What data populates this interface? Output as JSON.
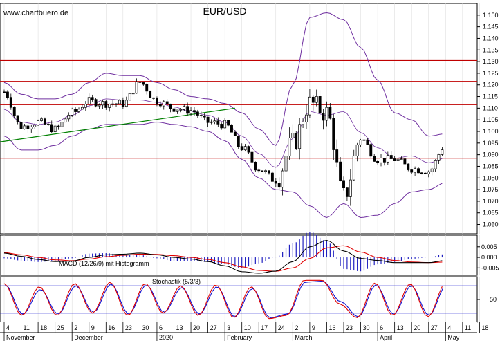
{
  "watermark": "www.chartbuero.de",
  "colors": {
    "bull": "#ffffff",
    "bear": "#000000",
    "band": "#7030a0",
    "hline": "#c00000",
    "trend": "#008000",
    "macd": "#000000",
    "signal": "#e00000",
    "hist": "#2020c0",
    "stochK": "#e00000",
    "stochD": "#1010d0",
    "stochLevel": "#1010d0"
  },
  "x_axis": {
    "day_labels": [
      "4",
      "11",
      "18",
      "25",
      "2",
      "9",
      "16",
      "23",
      "30",
      "6",
      "13",
      "20",
      "27",
      "3",
      "10",
      "17",
      "24",
      "2",
      "9",
      "16",
      "23",
      "30",
      "6",
      "13",
      "20",
      "27",
      "4",
      "11",
      "18"
    ],
    "month_labels": [
      {
        "label": "November",
        "week": 0
      },
      {
        "label": "December",
        "week": 4
      },
      {
        "label": "2020",
        "week": 9
      },
      {
        "label": "February",
        "week": 13
      },
      {
        "label": "March",
        "week": 17
      },
      {
        "label": "April",
        "week": 22
      },
      {
        "label": "May",
        "week": 26
      }
    ]
  },
  "chart_data": [
    {
      "type": "candlestick",
      "title": "EUR/USD",
      "ylim": [
        1.056,
        1.155
      ],
      "yticks": [
        "1.060",
        "1.065",
        "1.070",
        "1.075",
        "1.080",
        "1.085",
        "1.090",
        "1.095",
        "1.100",
        "1.105",
        "1.110",
        "1.115",
        "1.120",
        "1.125",
        "1.130",
        "1.135",
        "1.140",
        "1.145",
        "1.150"
      ],
      "horizontal_lines": [
        1.1305,
        1.1215,
        1.1115,
        1.0885
      ],
      "trendline": {
        "from": [
          0,
          1.0955
        ],
        "to": [
          68,
          1.11
        ]
      },
      "weekly_close": [
        1.117,
        1.102,
        1.104,
        1.101,
        1.108,
        1.113,
        1.112,
        1.112,
        1.121,
        1.113,
        1.11,
        1.109,
        1.104,
        1.103,
        1.093,
        1.084,
        1.079,
        1.095,
        1.112,
        1.108,
        1.072,
        1.097,
        1.088,
        1.088,
        1.084,
        1.083,
        1.094
      ],
      "bollinger_upper": [
        1.121,
        1.116,
        1.114,
        1.114,
        1.116,
        1.121,
        1.125,
        1.124,
        1.124,
        1.121,
        1.118,
        1.115,
        1.114,
        1.112,
        1.108,
        1.101,
        1.094,
        1.12,
        1.149,
        1.151,
        1.148,
        1.136,
        1.122,
        1.108,
        1.105,
        1.098,
        1.099
      ],
      "bollinger_lower": [
        1.098,
        1.092,
        1.092,
        1.094,
        1.098,
        1.101,
        1.103,
        1.103,
        1.103,
        1.104,
        1.103,
        1.102,
        1.1,
        1.096,
        1.088,
        1.08,
        1.075,
        1.074,
        1.068,
        1.063,
        1.069,
        1.063,
        1.064,
        1.069,
        1.074,
        1.075,
        1.078
      ]
    },
    {
      "type": "line",
      "title": "MACD (12/26/9) mit Histogramm",
      "ylim": [
        -0.0085,
        0.0105
      ],
      "yticks": [
        "-0.005",
        "0.000",
        "0.005"
      ],
      "series": [
        {
          "values": [
            0.002,
            0.0005,
            -0.001,
            -0.002,
            -0.0018,
            0.0,
            0.0012,
            0.0015,
            0.002,
            0.0012,
            0.0,
            -0.0008,
            -0.002,
            -0.004,
            -0.0068,
            -0.0075,
            -0.0065,
            -0.002,
            0.005,
            0.008,
            0.003,
            -0.0005,
            -0.0015,
            -0.0025,
            -0.0025,
            -0.0025,
            -0.0015
          ]
        },
        {
          "values": [
            0.0022,
            0.0012,
            0.0,
            -0.0012,
            -0.0016,
            -0.0008,
            0.0003,
            0.001,
            0.0015,
            0.0014,
            0.0008,
            0.0,
            -0.001,
            -0.0025,
            -0.0045,
            -0.0062,
            -0.0066,
            -0.005,
            -0.0005,
            0.0045,
            0.0055,
            0.0025,
            0.0,
            -0.0015,
            -0.0022,
            -0.0025,
            -0.0022
          ]
        }
      ]
    },
    {
      "type": "line",
      "title": "Stochastik (5/3/3)",
      "ylim": [
        0,
        100
      ],
      "yticks": [
        "50"
      ],
      "levels": [
        80,
        20
      ],
      "series": [
        {
          "values": [
            85,
            15,
            78,
            15,
            85,
            20,
            88,
            15,
            85,
            20,
            80,
            15,
            82,
            10,
            78,
            8,
            15,
            92,
            92,
            40,
            10,
            86,
            15,
            84,
            12,
            85
          ]
        },
        {
          "values": [
            82,
            18,
            72,
            18,
            80,
            22,
            84,
            18,
            82,
            22,
            76,
            18,
            78,
            12,
            74,
            10,
            18,
            88,
            90,
            45,
            12,
            82,
            18,
            80,
            15,
            82
          ]
        }
      ]
    }
  ]
}
